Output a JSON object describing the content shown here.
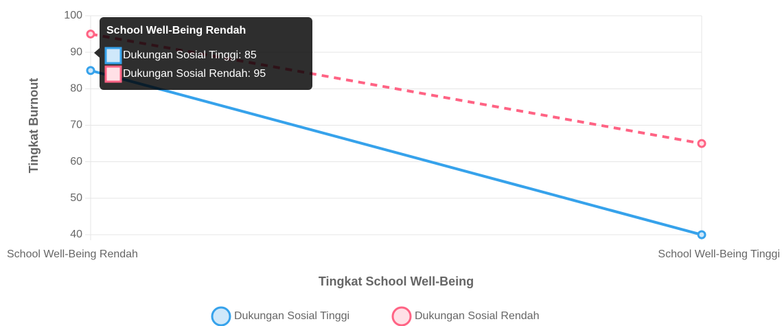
{
  "chart_data": {
    "type": "line",
    "categories": [
      "School Well-Being Rendah",
      "School Well-Being Tinggi"
    ],
    "series": [
      {
        "name": "Dukungan Sosial Tinggi",
        "color": "#36a2eb",
        "fill": "#cfe8fa",
        "dashed": false,
        "values": [
          85,
          40
        ]
      },
      {
        "name": "Dukungan Sosial Rendah",
        "color": "#ff6384",
        "fill": "#ffe0e6",
        "dashed": true,
        "values": [
          95,
          65
        ]
      }
    ],
    "ylim": [
      40,
      100
    ],
    "yticks": [
      40,
      50,
      60,
      70,
      80,
      90,
      100
    ],
    "grid": true,
    "xlabel": "Tingkat School Well-Being",
    "ylabel": "Tingkat Burnout",
    "legend": "bottom",
    "tooltip": {
      "title": "School Well-Being Rendah",
      "items": [
        "Dukungan Sosial Tinggi: 85",
        "Dukungan Sosial Rendah: 95"
      ]
    }
  }
}
